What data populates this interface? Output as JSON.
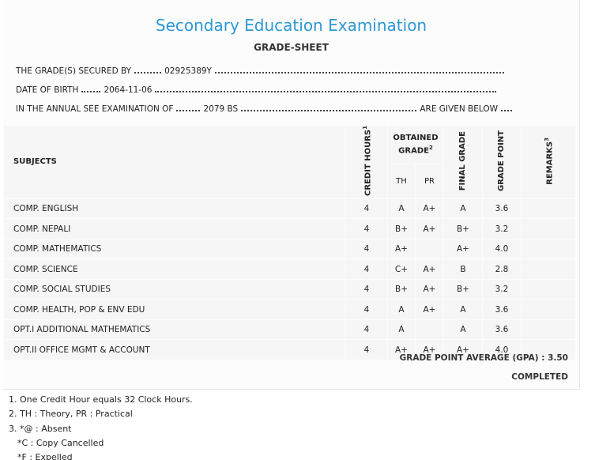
{
  "header": {
    "title": "Secondary Education Examination",
    "subtitle": "GRADE-SHEET"
  },
  "info": [
    {
      "label": "THE GRADE(S) SECURED BY",
      "value": "02925389Y"
    },
    {
      "label": "DATE OF BIRTH",
      "value": "2064-11-06"
    },
    {
      "label": "IN THE ANNUAL SEE EXAMINATION OF",
      "value": "2079 BS",
      "suffix": "ARE GIVEN BELOW"
    }
  ],
  "table": {
    "headers": {
      "subjects": "SUBJECTS",
      "credit_hours": {
        "text": "CREDIT HOURS",
        "note": "1"
      },
      "obtained_grade": {
        "text": "OBTAINED GRADE",
        "note": "2"
      },
      "th": "TH",
      "pr": "PR",
      "final_grade": "FINAL GRADE",
      "grade_point": "GRADE POINT",
      "remarks": {
        "text": "REMARKS",
        "note": "3"
      }
    },
    "rows": [
      [
        "COMP. ENGLISH",
        4,
        "A",
        "A+",
        "A",
        "3.6"
      ],
      [
        "COMP. NEPALI",
        4,
        "B+",
        "A+",
        "B+",
        "3.2"
      ],
      [
        "COMP. MATHEMATICS",
        4,
        "A+",
        null,
        "A+",
        "4.0"
      ],
      [
        "COMP. SCIENCE",
        4,
        "C+",
        "A+",
        "B",
        "2.8"
      ],
      [
        "COMP. SOCIAL STUDIES",
        4,
        "B+",
        "A+",
        "B+",
        "3.2"
      ],
      [
        "COMP. HEALTH, POP & ENV EDU",
        4,
        "A",
        "A+",
        "A",
        "3.6"
      ],
      [
        "OPT.I ADDITIONAL MATHEMATICS",
        4,
        "A",
        null,
        "A",
        "3.6"
      ],
      [
        "OPT.II OFFICE MGMT & ACCOUNT",
        4,
        "A+",
        "A+",
        "A+",
        "4.0"
      ]
    ]
  },
  "summary": {
    "gpa_label": "GRADE POINT AVERAGE (GPA) :",
    "gpa": "3.50",
    "result": "COMPLETED"
  },
  "notes": [
    "1. One Credit Hour equals 32 Clock Hours.",
    "2. TH : Theory, PR : Practical",
    "3. *@ : Absent",
    "*C : Copy Cancelled",
    "*F : Expelled"
  ]
}
